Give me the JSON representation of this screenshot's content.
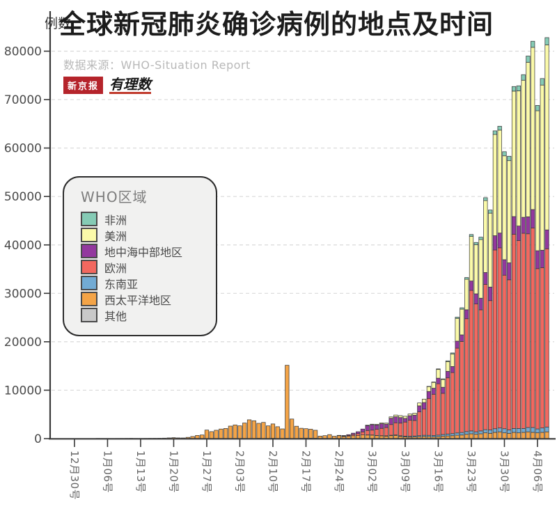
{
  "header": {
    "title": "全球新冠肺炎确诊病例的地点及时间",
    "source": "数据来源：WHO-Situation Report",
    "logo_left": "新京报",
    "logo_right": "有理数"
  },
  "axes": {
    "y_unit_label": "例数"
  },
  "legend": {
    "title": "WHO区域",
    "items": [
      {
        "label": "非洲",
        "color": "#85cbb5"
      },
      {
        "label": "美洲",
        "color": "#fbfaa9"
      },
      {
        "label": "地中海中部地区",
        "color": "#93389e"
      },
      {
        "label": "欧洲",
        "color": "#f2685f"
      },
      {
        "label": "东南亚",
        "color": "#72abd4"
      },
      {
        "label": "西太平洋地区",
        "color": "#f4a447"
      },
      {
        "label": "其他",
        "color": "#c9c9c9"
      }
    ]
  },
  "colors": {
    "bar_border": "#3a3a3a",
    "grid": "#d9d9d9",
    "axis": "#383838",
    "tick_label": "#666666",
    "y_label": "#4a4a4a"
  },
  "chart_data": {
    "type": "bar",
    "stacked": true,
    "title": "全球新冠肺炎确诊病例的地点及时间",
    "ylabel": "例数",
    "ylim": [
      0,
      80000
    ],
    "y_ticks": [
      0,
      10000,
      20000,
      30000,
      40000,
      50000,
      60000,
      70000,
      80000
    ],
    "grid": "dashed-horizontal",
    "legend_position": "middle-left",
    "n_days": 101,
    "date_range": "12月30号 - 4月08号 (每日新增确诊, daily bars)",
    "x_tick_labels": [
      "12月30号",
      "1月06号",
      "1月13号",
      "1月20号",
      "1月27号",
      "2月03号",
      "2月10号",
      "2月17号",
      "2月24号",
      "3月02号",
      "3月09号",
      "3月16号",
      "3月23号",
      "3月30号",
      "4月06号"
    ],
    "x_tick_day_indices": [
      0,
      7,
      14,
      21,
      28,
      35,
      42,
      49,
      56,
      63,
      70,
      77,
      84,
      91,
      98
    ],
    "stack_order_bottom_to_top": [
      "other",
      "wpacific",
      "seasia",
      "europe",
      "eastmed",
      "americas",
      "africa"
    ],
    "series": [
      {
        "name": "africa",
        "label": "非洲",
        "color": "#85cbb5",
        "values": [
          0,
          0,
          0,
          0,
          0,
          0,
          0,
          0,
          0,
          0,
          0,
          0,
          0,
          0,
          0,
          0,
          0,
          0,
          0,
          0,
          0,
          0,
          0,
          0,
          0,
          0,
          0,
          0,
          0,
          0,
          0,
          0,
          0,
          0,
          0,
          0,
          0,
          0,
          0,
          0,
          0,
          0,
          0,
          0,
          0,
          0,
          0,
          0,
          0,
          0,
          0,
          0,
          0,
          0,
          0,
          0,
          0,
          0,
          0,
          0,
          0,
          0,
          0,
          0,
          0,
          0,
          0,
          0,
          0,
          0,
          0,
          0,
          0,
          0,
          0,
          50,
          80,
          120,
          130,
          160,
          200,
          250,
          300,
          350,
          400,
          450,
          500,
          600,
          650,
          750,
          800,
          850,
          900,
          950,
          1050,
          1150,
          1300,
          1250,
          1100,
          1350,
          1500
        ]
      },
      {
        "name": "americas",
        "label": "美洲",
        "color": "#fbfaa9",
        "values": [
          0,
          0,
          0,
          0,
          0,
          0,
          0,
          0,
          0,
          0,
          0,
          0,
          0,
          0,
          0,
          0,
          0,
          0,
          0,
          0,
          0,
          0,
          0,
          0,
          0,
          0,
          0,
          0,
          0,
          0,
          0,
          0,
          0,
          0,
          0,
          0,
          0,
          0,
          0,
          0,
          0,
          0,
          0,
          0,
          0,
          0,
          0,
          0,
          0,
          0,
          0,
          0,
          0,
          0,
          0,
          0,
          0,
          0,
          0,
          0,
          0,
          0,
          100,
          120,
          150,
          180,
          220,
          280,
          350,
          400,
          450,
          350,
          400,
          600,
          700,
          1000,
          1200,
          1800,
          1600,
          2000,
          2600,
          4700,
          5300,
          6300,
          9200,
          10150,
          12100,
          14850,
          15250,
          20900,
          21250,
          21450,
          21100,
          25900,
          27900,
          28300,
          31900,
          33500,
          28900,
          34100,
          38200
        ]
      },
      {
        "name": "eastmed",
        "label": "地中海中部地区",
        "color": "#93389e",
        "values": [
          0,
          0,
          0,
          0,
          0,
          0,
          0,
          0,
          0,
          0,
          0,
          0,
          0,
          0,
          0,
          0,
          0,
          0,
          0,
          0,
          0,
          0,
          0,
          0,
          0,
          0,
          0,
          0,
          0,
          0,
          0,
          0,
          0,
          0,
          0,
          0,
          0,
          0,
          0,
          0,
          0,
          0,
          0,
          0,
          0,
          0,
          0,
          0,
          0,
          0,
          0,
          0,
          0,
          0,
          0,
          0,
          80,
          120,
          180,
          280,
          400,
          590,
          1000,
          1100,
          900,
          950,
          700,
          1300,
          1250,
          1150,
          750,
          950,
          1100,
          1250,
          1350,
          1450,
          1250,
          1150,
          1250,
          1350,
          1250,
          1450,
          1350,
          1850,
          1950,
          2100,
          2400,
          2450,
          2800,
          2950,
          3050,
          3200,
          3500,
          3650,
          3000,
          3300,
          3500,
          3800,
          3700,
          3600,
          3900
        ]
      },
      {
        "name": "europe",
        "label": "欧洲",
        "color": "#f2685f",
        "values": [
          0,
          0,
          0,
          0,
          0,
          0,
          0,
          0,
          0,
          0,
          0,
          0,
          0,
          0,
          0,
          0,
          0,
          0,
          0,
          0,
          0,
          0,
          0,
          0,
          0,
          0,
          0,
          0,
          0,
          0,
          0,
          0,
          0,
          0,
          0,
          0,
          0,
          0,
          0,
          0,
          0,
          0,
          0,
          0,
          0,
          0,
          0,
          0,
          0,
          0,
          0,
          0,
          0,
          0,
          0,
          0,
          0,
          100,
          140,
          250,
          390,
          620,
          900,
          1000,
          1250,
          1500,
          1700,
          2200,
          2500,
          2600,
          2900,
          3300,
          3200,
          4900,
          5400,
          7600,
          8500,
          10600,
          8500,
          11600,
          12600,
          17500,
          18800,
          23300,
          29000,
          26400,
          25000,
          30000,
          26700,
          36900,
          37200,
          31700,
          31000,
          40100,
          38800,
          40300,
          40000,
          41200,
          33100,
          33100,
          36800
        ]
      },
      {
        "name": "seasia",
        "label": "东南亚",
        "color": "#72abd4",
        "values": [
          0,
          0,
          0,
          0,
          0,
          0,
          0,
          0,
          0,
          0,
          0,
          0,
          0,
          0,
          0,
          0,
          0,
          0,
          0,
          0,
          0,
          0,
          0,
          0,
          0,
          0,
          0,
          0,
          0,
          0,
          0,
          0,
          0,
          0,
          0,
          0,
          0,
          0,
          0,
          0,
          0,
          0,
          0,
          0,
          0,
          0,
          0,
          0,
          0,
          0,
          0,
          0,
          0,
          0,
          0,
          0,
          0,
          0,
          0,
          0,
          0,
          0,
          30,
          40,
          50,
          60,
          80,
          100,
          120,
          140,
          160,
          180,
          200,
          220,
          250,
          280,
          300,
          330,
          360,
          400,
          440,
          480,
          520,
          560,
          600,
          500,
          600,
          650,
          700,
          750,
          800,
          850,
          700,
          800,
          900,
          800,
          900,
          1000,
          800,
          900,
          1000
        ]
      },
      {
        "name": "wpacific",
        "label": "西太平洋地区",
        "color": "#f4a447",
        "values": [
          0,
          0,
          0,
          0,
          0,
          40,
          30,
          30,
          25,
          30,
          40,
          50,
          60,
          40,
          40,
          50,
          60,
          70,
          80,
          100,
          150,
          200,
          150,
          140,
          260,
          440,
          660,
          760,
          1770,
          1450,
          1730,
          1980,
          2100,
          2590,
          2830,
          2650,
          3230,
          3890,
          3690,
          3100,
          3350,
          2640,
          2970,
          2460,
          2010,
          15100,
          4050,
          2560,
          2070,
          1960,
          1860,
          1650,
          510,
          620,
          830,
          500,
          600,
          430,
          500,
          600,
          640,
          770,
          750,
          720,
          620,
          560,
          510,
          610,
          650,
          460,
          360,
          310,
          350,
          400,
          450,
          410,
          360,
          400,
          500,
          550,
          600,
          700,
          750,
          900,
          1000,
          900,
          1000,
          1200,
          1100,
          1300,
          1400,
          1200,
          1100,
          1300,
          1200,
          1300,
          1400,
          1300,
          1200,
          1300,
          1400
        ]
      },
      {
        "name": "other",
        "label": "其他",
        "color": "#c9c9c9",
        "values": [
          0,
          0,
          0,
          0,
          0,
          0,
          0,
          0,
          0,
          0,
          0,
          0,
          0,
          0,
          0,
          0,
          0,
          0,
          0,
          0,
          0,
          0,
          0,
          0,
          0,
          0,
          0,
          0,
          0,
          0,
          0,
          0,
          0,
          0,
          0,
          0,
          0,
          0,
          0,
          60,
          0,
          0,
          65,
          0,
          0,
          45,
          0,
          0,
          70,
          100,
          90,
          80,
          15,
          0,
          0,
          0,
          0,
          0,
          0,
          0,
          0,
          0,
          0,
          0,
          0,
          0,
          0,
          0,
          0,
          0,
          0,
          0,
          0,
          0,
          0,
          0,
          0,
          0,
          0,
          0,
          0,
          0,
          0,
          0,
          0,
          0,
          0,
          0,
          0,
          0,
          0,
          0,
          0,
          0,
          0,
          0,
          0,
          0,
          0,
          0,
          0
        ]
      }
    ]
  }
}
